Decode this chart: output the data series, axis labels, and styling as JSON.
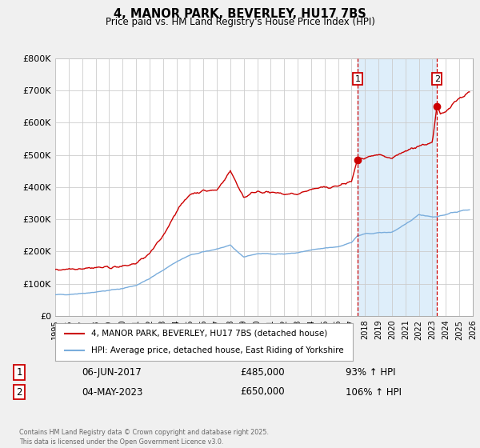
{
  "title": "4, MANOR PARK, BEVERLEY, HU17 7BS",
  "subtitle": "Price paid vs. HM Land Registry's House Price Index (HPI)",
  "ylim": [
    0,
    800000
  ],
  "xlim_start": 1995,
  "xlim_end": 2026,
  "yticks": [
    0,
    100000,
    200000,
    300000,
    400000,
    500000,
    600000,
    700000,
    800000
  ],
  "ytick_labels": [
    "£0",
    "£100K",
    "£200K",
    "£300K",
    "£400K",
    "£500K",
    "£600K",
    "£700K",
    "£800K"
  ],
  "xtick_years": [
    1995,
    1996,
    1997,
    1998,
    1999,
    2000,
    2001,
    2002,
    2003,
    2004,
    2005,
    2006,
    2007,
    2008,
    2009,
    2010,
    2011,
    2012,
    2013,
    2014,
    2015,
    2016,
    2017,
    2018,
    2019,
    2020,
    2021,
    2022,
    2023,
    2024,
    2025,
    2026
  ],
  "red_color": "#cc0000",
  "blue_color": "#7aaddc",
  "bg_color": "#f0f0f0",
  "plot_bg": "#ffffff",
  "grid_color": "#cccccc",
  "marker1_date": 2017.44,
  "marker1_value": 485000,
  "marker2_date": 2023.34,
  "marker2_value": 650000,
  "vline1_x": 2017.44,
  "vline2_x": 2023.34,
  "legend_line1": "4, MANOR PARK, BEVERLEY, HU17 7BS (detached house)",
  "legend_line2": "HPI: Average price, detached house, East Riding of Yorkshire",
  "annotation1_num": "1",
  "annotation1_date": "06-JUN-2017",
  "annotation1_price": "£485,000",
  "annotation1_hpi": "93% ↑ HPI",
  "annotation2_num": "2",
  "annotation2_date": "04-MAY-2023",
  "annotation2_price": "£650,000",
  "annotation2_hpi": "106% ↑ HPI",
  "footnote": "Contains HM Land Registry data © Crown copyright and database right 2025.\nThis data is licensed under the Open Government Licence v3.0."
}
